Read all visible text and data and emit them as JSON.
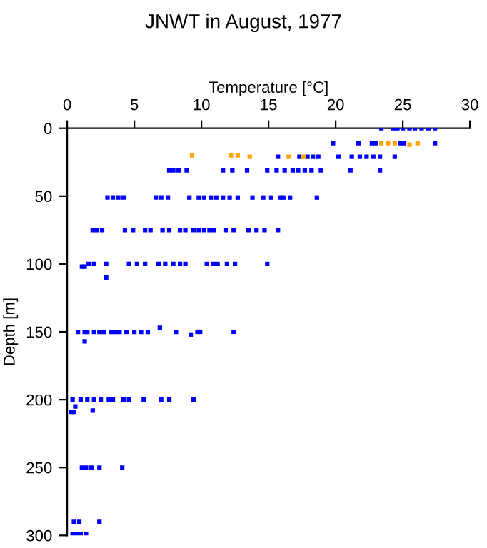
{
  "chart_data": {
    "type": "scatter",
    "title": "JNWT in August, 1977",
    "xlabel": "Temperature [°C]",
    "ylabel": "Depth [m]",
    "xlim": [
      0,
      30
    ],
    "xticks": [
      0,
      5,
      10,
      15,
      20,
      25,
      30
    ],
    "ylim": [
      300,
      0
    ],
    "yticks": [
      0,
      50,
      100,
      150,
      200,
      250,
      300
    ],
    "grid": false,
    "marker": "square",
    "series": [
      {
        "color": "#0000ff",
        "x": [
          23.4,
          24.3,
          24.6,
          25.0,
          25.5,
          25.9,
          26.4,
          26.9,
          27.4,
          19.8,
          21.7,
          22.7,
          23.0,
          24.8,
          25.1,
          27.4,
          15.7,
          17.3,
          17.9,
          18.3,
          18.7,
          20.2,
          21.2,
          21.8,
          22.3,
          22.8,
          23.3,
          24.4,
          7.6,
          7.9,
          8.3,
          8.9,
          11.6,
          12.3,
          13.4,
          14.9,
          15.6,
          16.2,
          16.8,
          17.2,
          17.7,
          18.2,
          18.9,
          21.1,
          23.3,
          3.0,
          3.4,
          3.8,
          4.2,
          6.6,
          7.0,
          7.5,
          9.1,
          9.8,
          10.2,
          10.7,
          11.1,
          11.6,
          12.1,
          12.7,
          13.8,
          14.6,
          15.2,
          15.9,
          16.1,
          16.6,
          18.6,
          1.9,
          2.2,
          2.6,
          4.3,
          4.9,
          5.8,
          6.2,
          7.1,
          7.6,
          8.4,
          8.8,
          9.4,
          9.8,
          10.2,
          10.6,
          10.9,
          11.8,
          12.4,
          13.5,
          14.1,
          14.7,
          15.7,
          1.1,
          1.3,
          1.6,
          2.0,
          2.9,
          4.6,
          5.2,
          5.8,
          6.8,
          7.3,
          7.9,
          8.4,
          8.8,
          10.4,
          10.9,
          11.2,
          11.9,
          12.5,
          14.9,
          2.9,
          0.8,
          1.3,
          1.5,
          2.0,
          2.4,
          2.7,
          3.3,
          3.6,
          3.9,
          4.4,
          5.0,
          5.5,
          6.0,
          6.9,
          8.1,
          9.2,
          9.7,
          9.9,
          12.4,
          1.3,
          0.4,
          0.6,
          1.0,
          1.5,
          1.9,
          2.0,
          2.5,
          3.1,
          3.4,
          4.2,
          4.6,
          5.7,
          7.0,
          7.6,
          9.4,
          0.3,
          0.5,
          1.1,
          1.4,
          1.8,
          2.4,
          4.1,
          0.5,
          0.9,
          2.4,
          0.4,
          0.7,
          1.0,
          1.4
        ],
        "values": [
          0,
          0,
          0,
          0,
          0,
          0,
          0,
          0,
          0,
          11,
          11,
          11,
          11,
          11,
          11,
          11,
          21,
          21,
          21,
          21,
          21,
          21,
          21,
          21,
          21,
          21,
          21,
          21,
          31,
          31,
          31,
          31,
          31,
          31,
          31,
          31,
          31,
          31,
          31,
          31,
          31,
          31,
          31,
          31,
          31,
          51,
          51,
          51,
          51,
          51,
          51,
          51,
          51,
          51,
          51,
          51,
          51,
          51,
          51,
          51,
          51,
          51,
          51,
          51,
          51,
          51,
          51,
          75,
          75,
          75,
          75,
          75,
          75,
          75,
          75,
          75,
          75,
          75,
          75,
          75,
          75,
          75,
          75,
          75,
          75,
          75,
          75,
          75,
          75,
          102,
          102,
          100,
          100,
          100,
          100,
          100,
          100,
          100,
          100,
          100,
          100,
          100,
          100,
          100,
          100,
          100,
          100,
          100,
          110,
          150,
          150,
          150,
          150,
          150,
          150,
          150,
          150,
          150,
          150,
          150,
          150,
          150,
          147,
          150,
          152,
          150,
          150,
          150,
          157,
          200,
          205,
          200,
          200,
          208,
          200,
          200,
          200,
          200,
          200,
          200,
          200,
          200,
          200,
          200,
          209,
          209,
          250,
          250,
          250,
          250,
          250,
          290,
          290,
          290,
          299,
          299,
          299,
          299
        ]
      },
      {
        "color": "#ffa500",
        "x": [
          9.3,
          12.2,
          12.7,
          13.6,
          16.5,
          17.6,
          23.4,
          23.9,
          24.4,
          25.5,
          26.1
        ],
        "values": [
          20,
          20,
          20,
          21,
          21,
          21,
          11,
          11,
          11,
          12,
          11
        ]
      }
    ]
  }
}
